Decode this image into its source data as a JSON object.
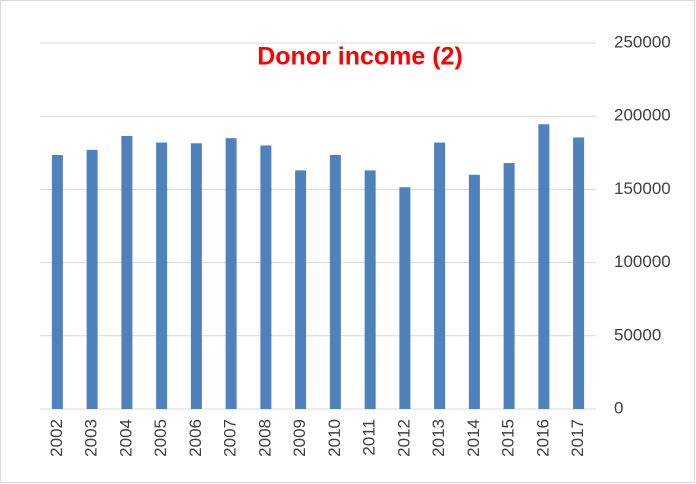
{
  "chart_data": {
    "type": "bar",
    "title": "Donor income (2)",
    "title_color": "#ff0000",
    "categories": [
      "2002",
      "2003",
      "2004",
      "2005",
      "2006",
      "2007",
      "2008",
      "2009",
      "2010",
      "2011",
      "2012",
      "2013",
      "2014",
      "2015",
      "2016",
      "2017"
    ],
    "values": [
      173500,
      177000,
      186500,
      182000,
      181500,
      185000,
      180000,
      163000,
      173500,
      163000,
      151500,
      182000,
      160000,
      168000,
      194500,
      185500
    ],
    "color": "#4f81bd",
    "ylim": [
      0,
      250000
    ],
    "yticks": [
      0,
      50000,
      100000,
      150000,
      200000,
      250000
    ],
    "grid": true,
    "y_axis_side": "right"
  }
}
